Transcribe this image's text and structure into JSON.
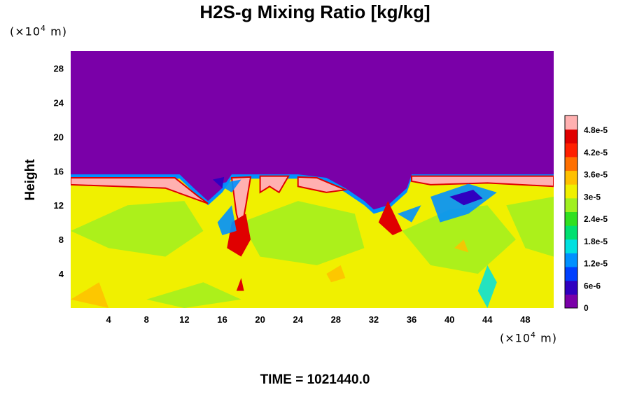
{
  "chart_data": {
    "type": "heatmap",
    "title": "H2S-g Mixing Ratio [kg/kg]",
    "ylabel": "Height",
    "y_unit_prefix": "(×10",
    "y_unit_exp": "4",
    "y_unit_suffix": " m)",
    "x_unit_prefix": "(×10",
    "x_unit_exp": "4",
    "x_unit_suffix": " m)",
    "xlim": [
      0,
      51
    ],
    "ylim": [
      0,
      30
    ],
    "x_ticks": [
      "4",
      "8",
      "12",
      "16",
      "20",
      "24",
      "28",
      "32",
      "36",
      "40",
      "44",
      "48"
    ],
    "y_ticks": [
      "4",
      "8",
      "12",
      "16",
      "20",
      "24",
      "28"
    ],
    "colorbar": {
      "range": [
        0,
        5.2e-05
      ],
      "tick_values": [
        0,
        6e-06,
        1.2e-05,
        1.8e-05,
        2.4e-05,
        3e-05,
        3.6e-05,
        4.2e-05,
        4.8e-05
      ],
      "tick_labels": [
        "0",
        "6e-6",
        "1.2e-5",
        "1.8e-5",
        "2.4e-5",
        "3e-5",
        "3.6e-5",
        "4.2e-5",
        "4.8e-5"
      ],
      "colors": [
        "#7a00a8",
        "#3000c0",
        "#0040ff",
        "#0090ff",
        "#00e0e0",
        "#00e070",
        "#30e020",
        "#a0f020",
        "#f0f000",
        "#ffc000",
        "#ff7000",
        "#ff2000",
        "#e00000",
        "#ffb0b0"
      ]
    },
    "fields": {
      "upper_layer_value": 0,
      "upper_layer_bottom_height": 15.5,
      "lower_layer_value": 3.3e-05,
      "cap_layer_value": 5e-05
    },
    "time_label": "TIME = 1021440.0"
  }
}
